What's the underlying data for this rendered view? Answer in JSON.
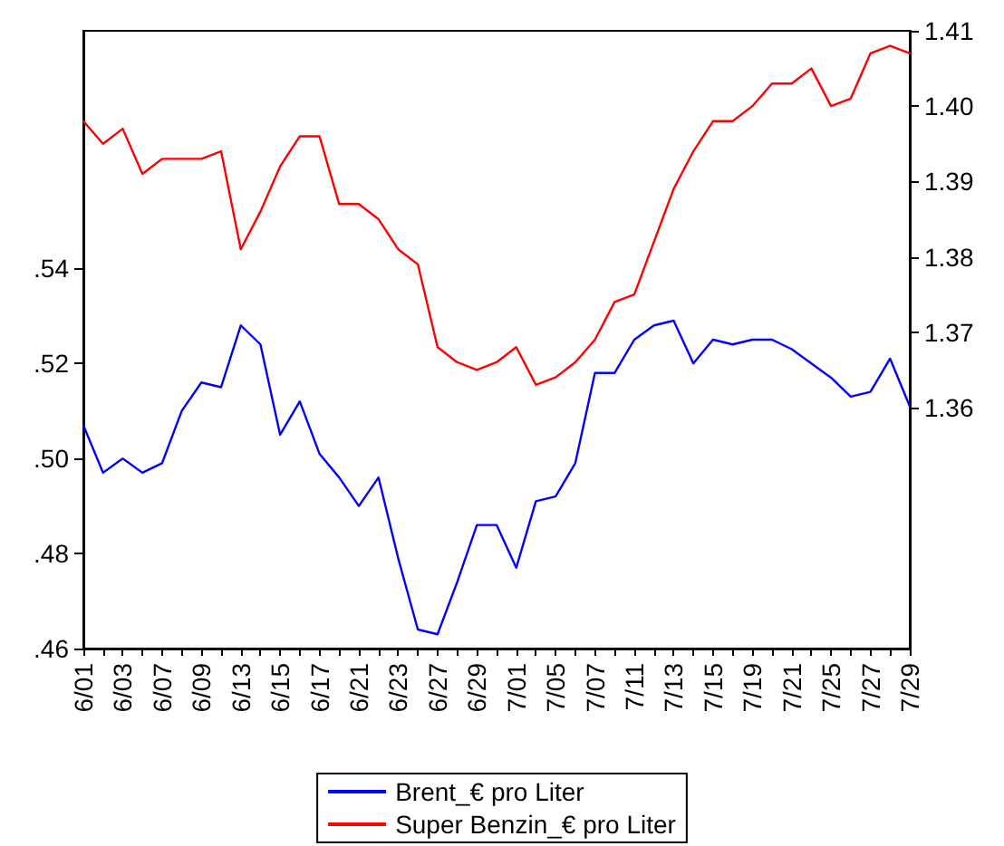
{
  "chart_data": {
    "type": "line",
    "categories": [
      "6/01",
      null,
      "6/03",
      null,
      "6/07",
      null,
      "6/09",
      null,
      "6/13",
      null,
      "6/15",
      null,
      "6/17",
      null,
      "6/21",
      null,
      "6/23",
      null,
      "6/27",
      null,
      "6/29",
      null,
      "7/01",
      null,
      "7/05",
      null,
      "7/07",
      null,
      "7/11",
      null,
      "7/13",
      null,
      "7/15",
      null,
      "7/19",
      null,
      "7/21",
      null,
      "7/25",
      null,
      "7/27",
      null,
      "7/29"
    ],
    "series": [
      {
        "name": "Brent_€ pro Liter",
        "color": "#0000ff",
        "values": [
          0.507,
          0.497,
          0.5,
          0.497,
          0.499,
          0.51,
          0.516,
          0.515,
          0.528,
          0.524,
          0.505,
          0.512,
          0.501,
          0.496,
          0.49,
          0.496,
          0.479,
          0.464,
          0.463,
          0.474,
          0.486,
          0.486,
          0.477,
          0.491,
          0.492,
          0.499,
          0.518,
          0.518,
          0.525,
          0.528,
          0.529,
          0.52,
          0.525,
          0.524,
          0.525,
          0.525,
          0.523,
          0.52,
          0.517,
          0.513,
          0.514,
          0.521,
          0.511
        ]
      },
      {
        "name": "Super Benzin_€ pro Liter",
        "color": "#ff0000",
        "axis": "y2",
        "values": [
          1.398,
          1.395,
          1.397,
          1.391,
          1.393,
          1.393,
          1.393,
          1.394,
          1.381,
          1.386,
          1.392,
          1.396,
          1.396,
          1.387,
          1.387,
          1.385,
          1.381,
          1.379,
          1.368,
          1.366,
          1.365,
          1.366,
          1.368,
          1.363,
          1.364,
          1.366,
          1.369,
          1.374,
          1.375,
          1.382,
          1.389,
          1.394,
          1.398,
          1.398,
          1.4,
          1.403,
          1.403,
          1.405,
          1.4,
          1.401,
          1.407,
          1.408,
          1.407
        ]
      }
    ],
    "ylim": [
      0.46,
      0.59
    ],
    "yticks": [
      {
        "value": 0.46,
        "label": ".46"
      },
      {
        "value": 0.48,
        "label": ".48"
      },
      {
        "value": 0.5,
        "label": ".50"
      },
      {
        "value": 0.52,
        "label": ".52"
      },
      {
        "value": 0.54,
        "label": ".54"
      }
    ],
    "y2lim": [
      1.328,
      1.41
    ],
    "y2ticks": [
      {
        "value": 1.36,
        "label": "1.36"
      },
      {
        "value": 1.37,
        "label": "1.37"
      },
      {
        "value": 1.38,
        "label": "1.38"
      },
      {
        "value": 1.39,
        "label": "1.39"
      },
      {
        "value": 1.4,
        "label": "1.40"
      },
      {
        "value": 1.41,
        "label": "1.41"
      }
    ],
    "legend": "bottom",
    "grid": false,
    "marker": "none",
    "line_style": "solid"
  }
}
